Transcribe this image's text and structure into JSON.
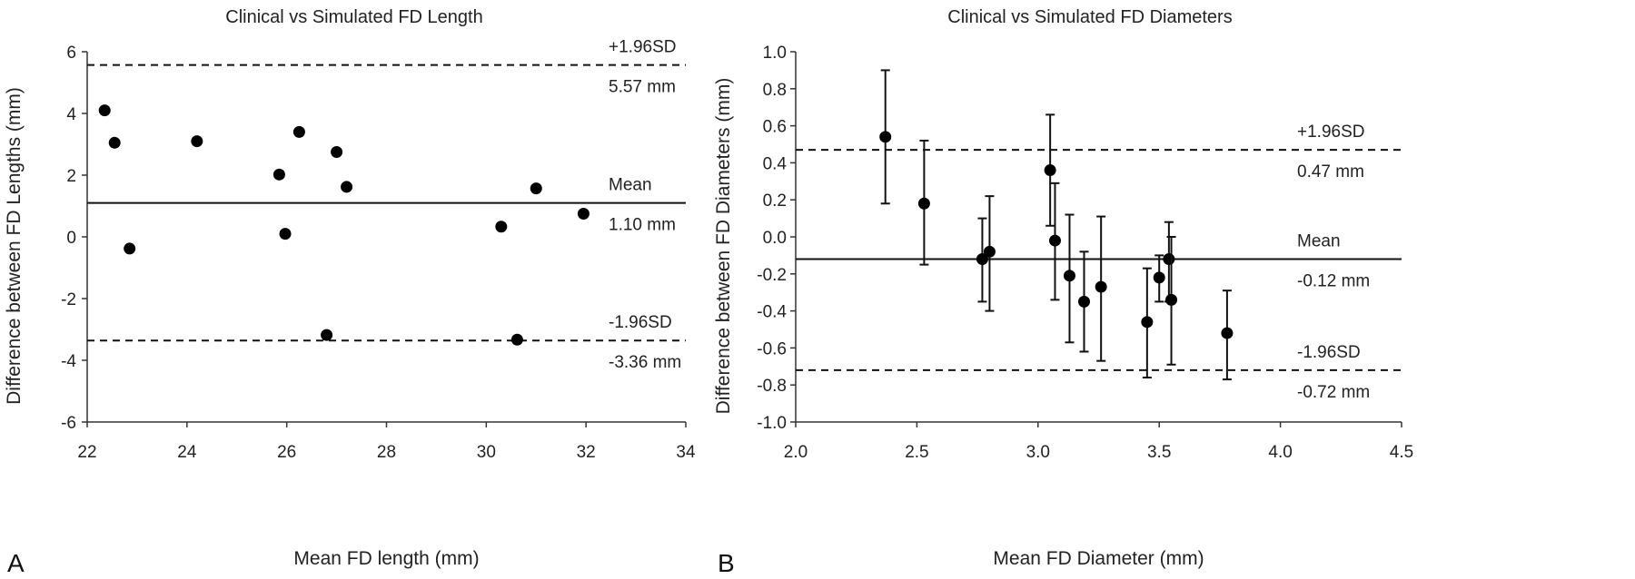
{
  "chart_data": [
    {
      "type": "scatter",
      "panel_label": "A",
      "title": "Clinical vs Simulated FD Length",
      "xlabel": "Mean FD length (mm)",
      "ylabel": "Difference between FD Lengths (mm)",
      "xlim": [
        22,
        34
      ],
      "ylim": [
        -6,
        6
      ],
      "xticks": [
        "22",
        "24",
        "26",
        "28",
        "30",
        "32",
        "34"
      ],
      "yticks": [
        "6",
        "4",
        "2",
        "0",
        "-2",
        "-4",
        "-6"
      ],
      "grid": false,
      "points": [
        {
          "x": 22.35,
          "y": 4.1
        },
        {
          "x": 22.55,
          "y": 3.05
        },
        {
          "x": 22.85,
          "y": -0.38
        },
        {
          "x": 24.2,
          "y": 3.1
        },
        {
          "x": 25.85,
          "y": 2.02
        },
        {
          "x": 25.97,
          "y": 0.1
        },
        {
          "x": 26.25,
          "y": 3.4
        },
        {
          "x": 26.8,
          "y": -3.18
        },
        {
          "x": 27.0,
          "y": 2.75
        },
        {
          "x": 27.2,
          "y": 1.62
        },
        {
          "x": 30.3,
          "y": 0.33
        },
        {
          "x": 30.62,
          "y": -3.33
        },
        {
          "x": 31.0,
          "y": 1.57
        },
        {
          "x": 31.95,
          "y": 0.75
        }
      ],
      "lines": {
        "upper": {
          "value": 5.57,
          "label": "+1.96SD",
          "value_label": "5.57 mm"
        },
        "mean": {
          "value": 1.1,
          "label": "Mean",
          "value_label": "1.10 mm"
        },
        "lower": {
          "value": -3.36,
          "label": "-1.96SD",
          "value_label": "-3.36 mm"
        }
      }
    },
    {
      "type": "scatter",
      "panel_label": "B",
      "title": "Clinical vs Simulated FD Diameters",
      "xlabel": "Mean FD Diameter (mm)",
      "ylabel": "Difference between FD Diameters (mm)",
      "xlim": [
        2.0,
        4.5
      ],
      "ylim": [
        -1.0,
        1.0
      ],
      "xticks": [
        "2.0",
        "2.5",
        "3.0",
        "3.5",
        "4.0",
        "4.5"
      ],
      "yticks": [
        "1.0",
        "0.8",
        "0.6",
        "0.4",
        "0.2",
        "0.0",
        "-0.2",
        "-0.4",
        "-0.6",
        "-0.8",
        "-1.0"
      ],
      "grid": false,
      "points": [
        {
          "x": 2.37,
          "y": 0.54,
          "err_low": 0.18,
          "err_high": 0.9
        },
        {
          "x": 2.53,
          "y": 0.18,
          "err_low": -0.15,
          "err_high": 0.52
        },
        {
          "x": 2.77,
          "y": -0.12,
          "err_low": -0.35,
          "err_high": 0.1
        },
        {
          "x": 2.8,
          "y": -0.08,
          "err_low": -0.4,
          "err_high": 0.22
        },
        {
          "x": 3.05,
          "y": 0.36,
          "err_low": 0.06,
          "err_high": 0.66
        },
        {
          "x": 3.07,
          "y": -0.02,
          "err_low": -0.34,
          "err_high": 0.29
        },
        {
          "x": 3.13,
          "y": -0.21,
          "err_low": -0.57,
          "err_high": 0.12
        },
        {
          "x": 3.19,
          "y": -0.35,
          "err_low": -0.62,
          "err_high": -0.08
        },
        {
          "x": 3.26,
          "y": -0.27,
          "err_low": -0.67,
          "err_high": 0.11
        },
        {
          "x": 3.45,
          "y": -0.46,
          "err_low": -0.76,
          "err_high": -0.17
        },
        {
          "x": 3.5,
          "y": -0.22,
          "err_low": -0.35,
          "err_high": -0.1
        },
        {
          "x": 3.54,
          "y": -0.12,
          "err_low": -0.35,
          "err_high": 0.08
        },
        {
          "x": 3.55,
          "y": -0.34,
          "err_low": -0.69,
          "err_high": 0.0
        },
        {
          "x": 3.78,
          "y": -0.52,
          "err_low": -0.77,
          "err_high": -0.29
        }
      ],
      "lines": {
        "upper": {
          "value": 0.47,
          "label": "+1.96SD",
          "value_label": "0.47 mm"
        },
        "mean": {
          "value": -0.12,
          "label": "Mean",
          "value_label": "-0.12 mm"
        },
        "lower": {
          "value": -0.72,
          "label": "-1.96SD",
          "value_label": "-0.72 mm"
        }
      }
    }
  ]
}
